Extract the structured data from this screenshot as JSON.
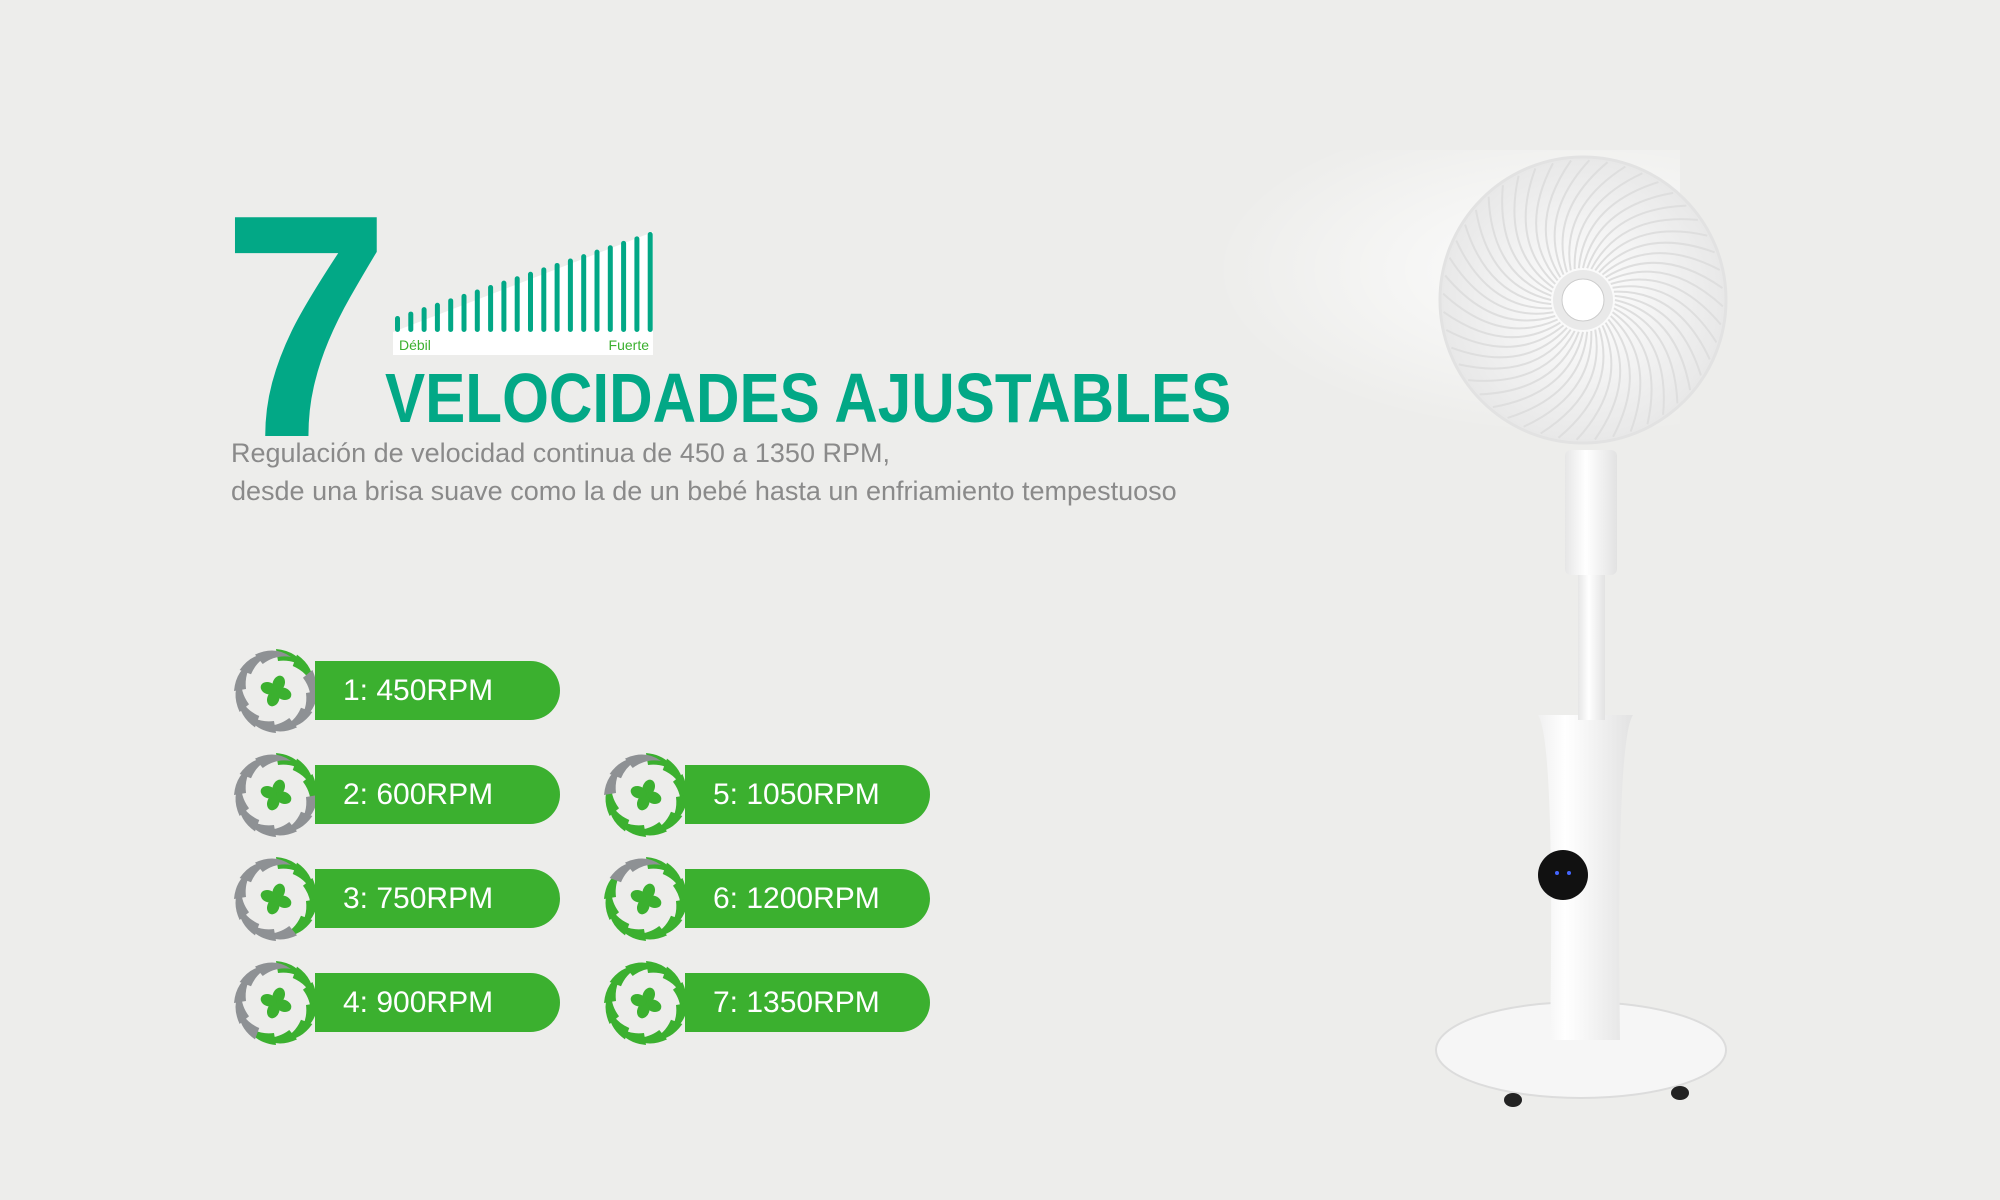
{
  "heading": {
    "number": "7",
    "title": "VELOCIDADES AJUSTABLES"
  },
  "meter": {
    "min_label": "Débil",
    "max_label": "Fuerte",
    "color": "#02a886",
    "label_color": "#3bb02f"
  },
  "description": {
    "line1": "Regulación de velocidad continua de 450 a 1350 RPM,",
    "line2": "desde una brisa suave como la de un bebé hasta un enfriamiento tempestuoso"
  },
  "colors": {
    "brand": "#02a886",
    "pill": "#3bb02f",
    "icon_inactive": "#8e9194",
    "text_muted": "#8a8a8a"
  },
  "speeds": [
    {
      "level": 1,
      "label": "1: 450RPM"
    },
    {
      "level": 2,
      "label": "2: 600RPM"
    },
    {
      "level": 3,
      "label": "3: 750RPM"
    },
    {
      "level": 4,
      "label": "4: 900RPM"
    },
    {
      "level": 5,
      "label": "5: 1050RPM"
    },
    {
      "level": 6,
      "label": "6: 1200RPM"
    },
    {
      "level": 7,
      "label": "7: 1350RPM"
    }
  ],
  "speeds_total": 7,
  "product_image": "white-pedestal-fan"
}
